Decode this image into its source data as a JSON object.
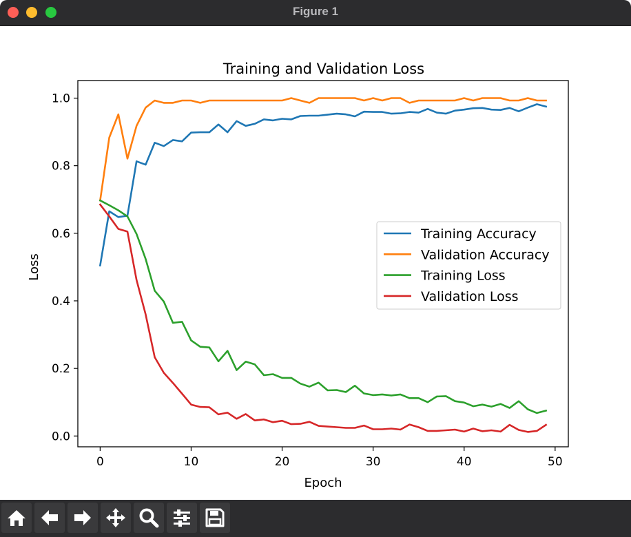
{
  "window": {
    "title": "Figure 1"
  },
  "toolbar": {
    "buttons": [
      {
        "icon": "home-icon"
      },
      {
        "icon": "back-arrow-icon"
      },
      {
        "icon": "forward-arrow-icon"
      },
      {
        "icon": "pan-icon"
      },
      {
        "icon": "zoom-icon"
      },
      {
        "icon": "configure-subplots-icon"
      },
      {
        "icon": "save-icon"
      }
    ]
  },
  "chart_data": {
    "type": "line",
    "title": "Training and Validation Loss",
    "xlabel": "Epoch",
    "ylabel": "Loss",
    "xlim": [
      -2.45,
      51.45
    ],
    "ylim": [
      -0.032,
      1.052
    ],
    "xticks": [
      0,
      10,
      20,
      30,
      40,
      50
    ],
    "yticks": [
      0.0,
      0.2,
      0.4,
      0.6,
      0.8,
      1.0
    ],
    "xtick_labels": [
      "0",
      "10",
      "20",
      "30",
      "40",
      "50"
    ],
    "ytick_labels": [
      "0.0",
      "0.2",
      "0.4",
      "0.6",
      "0.8",
      "1.0"
    ],
    "grid": false,
    "legend_position": "center-right",
    "x": [
      0,
      1,
      2,
      3,
      4,
      5,
      6,
      7,
      8,
      9,
      10,
      11,
      12,
      13,
      14,
      15,
      16,
      17,
      18,
      19,
      20,
      21,
      22,
      23,
      24,
      25,
      26,
      27,
      28,
      29,
      30,
      31,
      32,
      33,
      34,
      35,
      36,
      37,
      38,
      39,
      40,
      41,
      42,
      43,
      44,
      45,
      46,
      47,
      48,
      49
    ],
    "series": [
      {
        "name": "Training Accuracy",
        "color": "#1f77b4",
        "values": [
          0.505,
          0.665,
          0.648,
          0.652,
          0.813,
          0.803,
          0.868,
          0.858,
          0.876,
          0.872,
          0.898,
          0.899,
          0.899,
          0.922,
          0.899,
          0.932,
          0.918,
          0.924,
          0.937,
          0.934,
          0.939,
          0.937,
          0.947,
          0.948,
          0.948,
          0.951,
          0.954,
          0.952,
          0.946,
          0.96,
          0.959,
          0.959,
          0.954,
          0.955,
          0.959,
          0.957,
          0.968,
          0.957,
          0.954,
          0.963,
          0.966,
          0.97,
          0.971,
          0.966,
          0.965,
          0.971,
          0.961,
          0.972,
          0.982,
          0.975
        ]
      },
      {
        "name": "Validation Accuracy",
        "color": "#ff7f0e",
        "values": [
          0.697,
          0.883,
          0.952,
          0.821,
          0.918,
          0.972,
          0.993,
          0.986,
          0.986,
          0.993,
          0.993,
          0.986,
          0.993,
          0.993,
          0.993,
          0.993,
          0.993,
          0.993,
          0.993,
          0.993,
          0.993,
          1.0,
          0.993,
          0.986,
          1.0,
          1.0,
          1.0,
          1.0,
          1.0,
          0.993,
          1.0,
          0.993,
          1.0,
          1.0,
          0.986,
          0.993,
          0.993,
          0.993,
          0.993,
          0.993,
          1.0,
          0.993,
          1.0,
          1.0,
          1.0,
          0.993,
          0.993,
          1.0,
          0.993,
          0.993
        ]
      },
      {
        "name": "Training Loss",
        "color": "#2ca02c",
        "values": [
          0.697,
          0.683,
          0.668,
          0.65,
          0.598,
          0.524,
          0.43,
          0.398,
          0.335,
          0.338,
          0.283,
          0.264,
          0.262,
          0.221,
          0.252,
          0.195,
          0.22,
          0.212,
          0.18,
          0.183,
          0.172,
          0.172,
          0.155,
          0.146,
          0.158,
          0.135,
          0.136,
          0.13,
          0.149,
          0.126,
          0.121,
          0.123,
          0.12,
          0.123,
          0.112,
          0.112,
          0.1,
          0.117,
          0.118,
          0.103,
          0.099,
          0.088,
          0.093,
          0.087,
          0.095,
          0.083,
          0.103,
          0.079,
          0.068,
          0.075
        ]
      },
      {
        "name": "Validation Loss",
        "color": "#d62728",
        "values": [
          0.685,
          0.65,
          0.613,
          0.605,
          0.462,
          0.36,
          0.233,
          0.187,
          0.157,
          0.125,
          0.093,
          0.086,
          0.085,
          0.064,
          0.069,
          0.051,
          0.065,
          0.046,
          0.049,
          0.041,
          0.045,
          0.035,
          0.036,
          0.042,
          0.03,
          0.028,
          0.026,
          0.024,
          0.024,
          0.031,
          0.02,
          0.02,
          0.022,
          0.019,
          0.034,
          0.026,
          0.015,
          0.015,
          0.017,
          0.019,
          0.013,
          0.022,
          0.014,
          0.017,
          0.013,
          0.033,
          0.018,
          0.012,
          0.015,
          0.033
        ]
      }
    ]
  }
}
